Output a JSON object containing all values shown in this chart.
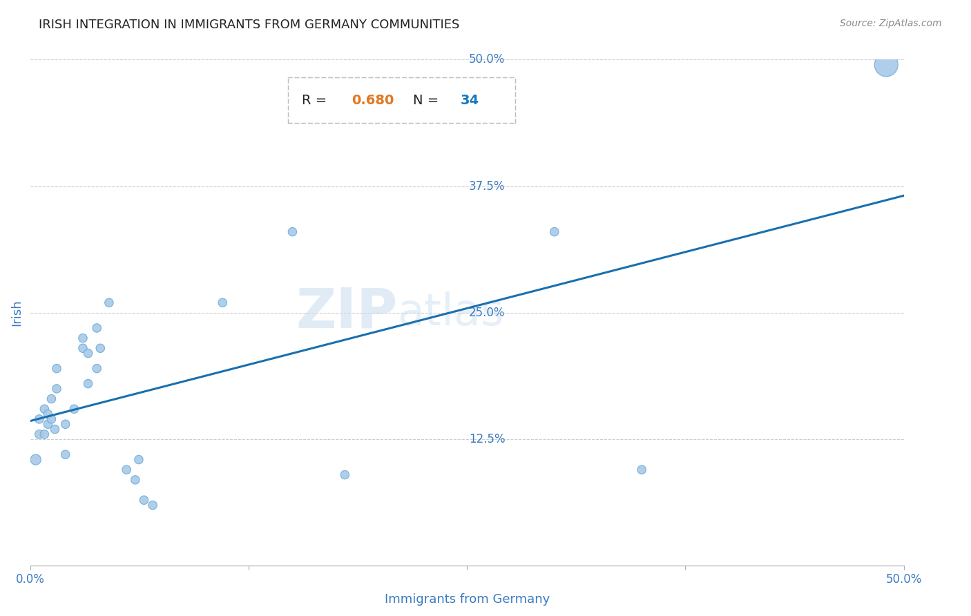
{
  "title": "IRISH INTEGRATION IN IMMIGRANTS FROM GERMANY COMMUNITIES",
  "source": "Source: ZipAtlas.com",
  "xlabel": "Immigrants from Germany",
  "ylabel": "Irish",
  "R": 0.68,
  "N": 34,
  "xlim": [
    0,
    0.5
  ],
  "ylim": [
    0,
    0.5
  ],
  "scatter_color": "#a8c8e8",
  "scatter_edge_color": "#6aaed6",
  "line_color": "#1a6faf",
  "watermark_zip": "ZIP",
  "watermark_atlas": "atlas",
  "scatter_x": [
    0.003,
    0.005,
    0.005,
    0.008,
    0.008,
    0.01,
    0.01,
    0.012,
    0.012,
    0.014,
    0.015,
    0.015,
    0.02,
    0.02,
    0.025,
    0.03,
    0.03,
    0.033,
    0.033,
    0.038,
    0.038,
    0.04,
    0.045,
    0.055,
    0.06,
    0.062,
    0.065,
    0.07,
    0.11,
    0.15,
    0.18,
    0.3,
    0.35,
    0.49
  ],
  "scatter_y": [
    0.105,
    0.13,
    0.145,
    0.13,
    0.155,
    0.14,
    0.15,
    0.145,
    0.165,
    0.135,
    0.175,
    0.195,
    0.11,
    0.14,
    0.155,
    0.215,
    0.225,
    0.18,
    0.21,
    0.195,
    0.235,
    0.215,
    0.26,
    0.095,
    0.085,
    0.105,
    0.065,
    0.06,
    0.26,
    0.33,
    0.09,
    0.33,
    0.095,
    0.495
  ],
  "scatter_sizes": [
    120,
    80,
    80,
    80,
    80,
    80,
    80,
    80,
    80,
    80,
    80,
    80,
    80,
    80,
    80,
    80,
    80,
    80,
    80,
    80,
    80,
    80,
    80,
    80,
    80,
    80,
    80,
    80,
    80,
    80,
    80,
    80,
    80,
    600
  ],
  "background_color": "#ffffff",
  "grid_color": "#cccccc",
  "tick_color": "#3a7abf",
  "label_color": "#3a7abf",
  "title_color": "#222222",
  "source_color": "#888888",
  "R_value_color": "#e07820",
  "N_value_color": "#1a7abf",
  "box_edge_color": "#bbbbbb"
}
